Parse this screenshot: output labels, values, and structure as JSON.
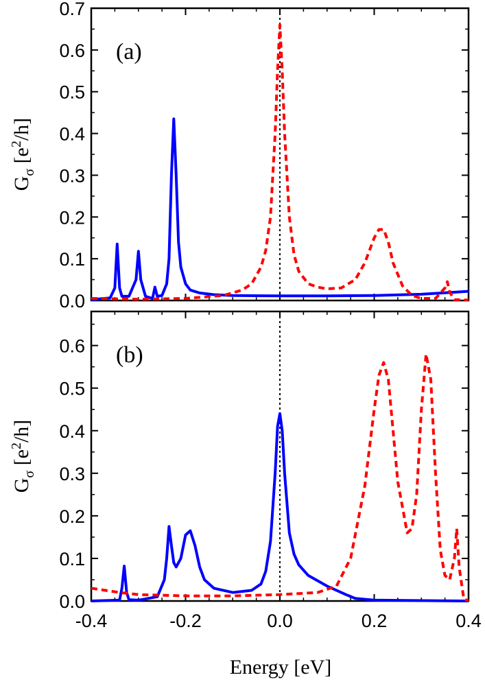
{
  "chart_data": {
    "type": "line",
    "colors": {
      "solid_series": "#0000ff",
      "dashed_series": "#ff0000",
      "reference_line": "#000000"
    },
    "xlabel": "Energy [eV]",
    "xlim": [
      -0.4,
      0.4
    ],
    "x_ticks": [
      "-0.4",
      "-0.2",
      "0.0",
      "0.2",
      "0.4"
    ],
    "ylabel": {
      "base": "G",
      "sub": "σ",
      "open": " [e",
      "sup": "2",
      "close": "/h]"
    },
    "reference_x": 0.0,
    "panels": [
      {
        "label": "(a)",
        "ylim": [
          0,
          0.7
        ],
        "y_ticks": [
          "0.0",
          "0.1",
          "0.2",
          "0.3",
          "0.4",
          "0.5",
          "0.6",
          "0.7"
        ],
        "series": [
          {
            "style": "solid",
            "x": [
              -0.4,
              -0.36,
              -0.35,
              -0.345,
              -0.34,
              -0.335,
              -0.32,
              -0.305,
              -0.3,
              -0.295,
              -0.285,
              -0.27,
              -0.265,
              -0.26,
              -0.25,
              -0.24,
              -0.235,
              -0.23,
              -0.225,
              -0.22,
              -0.215,
              -0.21,
              -0.2,
              -0.19,
              -0.17,
              -0.14,
              -0.1,
              0.0,
              0.1,
              0.2,
              0.3,
              0.4
            ],
            "y": [
              0.002,
              0.006,
              0.03,
              0.135,
              0.03,
              0.01,
              0.01,
              0.05,
              0.118,
              0.05,
              0.01,
              0.005,
              0.032,
              0.01,
              0.012,
              0.04,
              0.1,
              0.3,
              0.435,
              0.3,
              0.14,
              0.08,
              0.04,
              0.025,
              0.018,
              0.014,
              0.012,
              0.011,
              0.011,
              0.012,
              0.015,
              0.022
            ]
          },
          {
            "style": "dashed",
            "x": [
              -0.4,
              -0.3,
              -0.2,
              -0.12,
              -0.08,
              -0.06,
              -0.04,
              -0.03,
              -0.02,
              -0.01,
              -0.005,
              0.0,
              0.005,
              0.01,
              0.02,
              0.03,
              0.04,
              0.06,
              0.08,
              0.1,
              0.13,
              0.16,
              0.18,
              0.2,
              0.21,
              0.22,
              0.23,
              0.24,
              0.26,
              0.28,
              0.3,
              0.33,
              0.35,
              0.355,
              0.36,
              0.37,
              0.4
            ],
            "y": [
              0.005,
              0.003,
              0.005,
              0.012,
              0.025,
              0.04,
              0.08,
              0.12,
              0.2,
              0.4,
              0.55,
              0.66,
              0.55,
              0.4,
              0.2,
              0.11,
              0.07,
              0.04,
              0.032,
              0.028,
              0.03,
              0.05,
              0.09,
              0.15,
              0.17,
              0.17,
              0.14,
              0.09,
              0.035,
              0.012,
              0.005,
              0.005,
              0.03,
              0.045,
              0.02,
              0.002,
              0.001
            ]
          }
        ]
      },
      {
        "label": "(b)",
        "ylim": [
          0,
          0.68
        ],
        "y_ticks": [
          "0.0",
          "0.1",
          "0.2",
          "0.3",
          "0.4",
          "0.5",
          "0.6"
        ],
        "series": [
          {
            "style": "solid",
            "x": [
              -0.4,
              -0.34,
              -0.335,
              -0.33,
              -0.325,
              -0.32,
              -0.3,
              -0.26,
              -0.245,
              -0.24,
              -0.235,
              -0.23,
              -0.225,
              -0.22,
              -0.21,
              -0.2,
              -0.19,
              -0.18,
              -0.17,
              -0.16,
              -0.14,
              -0.1,
              -0.06,
              -0.04,
              -0.03,
              -0.02,
              -0.01,
              -0.005,
              0.0,
              0.005,
              0.01,
              0.02,
              0.03,
              0.04,
              0.06,
              0.1,
              0.14,
              0.16,
              0.2,
              0.4
            ],
            "y": [
              0.0,
              0.002,
              0.03,
              0.082,
              0.02,
              0.003,
              0.002,
              0.01,
              0.05,
              0.1,
              0.175,
              0.13,
              0.09,
              0.08,
              0.1,
              0.155,
              0.165,
              0.13,
              0.08,
              0.05,
              0.03,
              0.02,
              0.025,
              0.04,
              0.07,
              0.14,
              0.3,
              0.41,
              0.44,
              0.4,
              0.3,
              0.16,
              0.11,
              0.085,
              0.06,
              0.035,
              0.015,
              0.006,
              0.002,
              0.0
            ]
          },
          {
            "style": "dashed",
            "x": [
              -0.4,
              -0.34,
              -0.3,
              -0.2,
              -0.1,
              0.0,
              0.08,
              0.12,
              0.15,
              0.18,
              0.2,
              0.21,
              0.22,
              0.23,
              0.24,
              0.25,
              0.27,
              0.28,
              0.29,
              0.3,
              0.31,
              0.32,
              0.33,
              0.34,
              0.35,
              0.36,
              0.37,
              0.375,
              0.38,
              0.39,
              0.4
            ],
            "y": [
              0.03,
              0.02,
              0.015,
              0.012,
              0.012,
              0.015,
              0.02,
              0.035,
              0.1,
              0.27,
              0.45,
              0.53,
              0.56,
              0.52,
              0.4,
              0.28,
              0.16,
              0.17,
              0.25,
              0.45,
              0.58,
              0.52,
              0.3,
              0.12,
              0.06,
              0.05,
              0.1,
              0.17,
              0.08,
              0.005,
              0.0
            ]
          }
        ]
      }
    ]
  }
}
